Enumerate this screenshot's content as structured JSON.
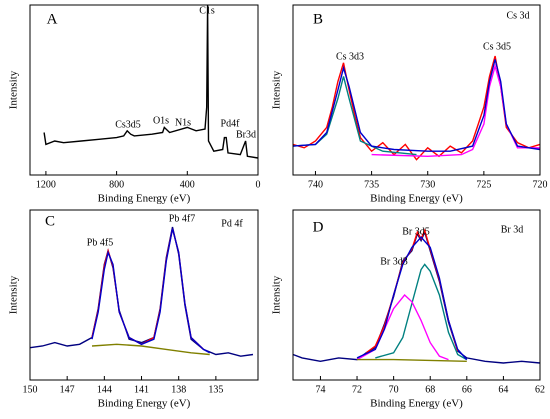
{
  "chart_data": [
    {
      "type": "line",
      "label": "A",
      "x_label": "Binding Energy (eV)",
      "y_label": "Intensity",
      "xlim": [
        1290,
        0
      ],
      "ylim": [
        0,
        100
      ],
      "xticks": [
        1200,
        800,
        400,
        0
      ],
      "annotations": [
        "C1s",
        "O1s",
        "N1s",
        "Cs3d5",
        "Pd4f",
        "Br3d"
      ],
      "series": [
        {
          "color": "#000000",
          "x": [
            1210,
            1200,
            1150,
            1100,
            1000,
            900,
            800,
            760,
            740,
            720,
            700,
            600,
            540,
            530,
            500,
            400,
            350,
            300,
            290,
            285,
            280,
            250,
            200,
            190,
            180,
            170,
            100,
            70,
            60,
            0
          ],
          "values": [
            25,
            18,
            20,
            19,
            20,
            21,
            22,
            23,
            26,
            24,
            23,
            24,
            25,
            28,
            25,
            28,
            26,
            27,
            40,
            100,
            20,
            14,
            15,
            22,
            22,
            13,
            12,
            20,
            11,
            10
          ]
        }
      ]
    },
    {
      "type": "line",
      "label": "B",
      "x_label": "Binding Energy (eV)",
      "y_label": "Intensity",
      "xlim": [
        742,
        720
      ],
      "ylim": [
        0,
        100
      ],
      "xticks": [
        740,
        735,
        730,
        725,
        720
      ],
      "annotations": [
        "Cs 3d",
        "Cs 3d3",
        "Cs 3d5"
      ],
      "series": [
        {
          "color": "#ff0000",
          "x": [
            742,
            741,
            740,
            739,
            738.5,
            738,
            737.5,
            737,
            736.5,
            736,
            735,
            734,
            733,
            732,
            731,
            730,
            729,
            728,
            727,
            726,
            725.5,
            725,
            724.5,
            724,
            723.5,
            723,
            722,
            721,
            720
          ],
          "values": [
            18,
            16,
            20,
            28,
            40,
            55,
            66,
            50,
            35,
            22,
            14,
            19,
            12,
            18,
            9,
            16,
            11,
            17,
            13,
            20,
            30,
            40,
            58,
            70,
            52,
            28,
            19,
            16,
            18
          ]
        },
        {
          "color": "#008080",
          "x": [
            742,
            740,
            739,
            738,
            737.5,
            737,
            736,
            734,
            731
          ],
          "values": [
            17,
            18,
            24,
            45,
            58,
            45,
            20,
            14,
            12
          ]
        },
        {
          "color": "#ff00ff",
          "x": [
            735,
            730,
            727,
            726,
            725,
            724.5,
            724,
            723.5,
            723,
            722,
            720
          ],
          "values": [
            12,
            11,
            12,
            15,
            30,
            52,
            64,
            52,
            30,
            16,
            16
          ]
        },
        {
          "color": "#0000cc",
          "x": [
            742,
            740,
            739,
            738,
            737.5,
            737,
            736,
            735,
            733,
            730,
            728,
            726,
            725,
            724.5,
            724,
            723.5,
            723,
            722,
            720
          ],
          "values": [
            17,
            18,
            25,
            50,
            63,
            52,
            25,
            17,
            15,
            14,
            14,
            17,
            35,
            55,
            68,
            55,
            30,
            17,
            15
          ]
        }
      ]
    },
    {
      "type": "line",
      "label": "C",
      "x_label": "Binding Energy (eV)",
      "y_label": "Intensity",
      "xlim": [
        150,
        131.6
      ],
      "ylim": [
        0,
        100
      ],
      "xticks": [
        150,
        147,
        144,
        141,
        138,
        135
      ],
      "annotations": [
        "Pd 4f",
        "Pb 4f5",
        "Pb 4f7"
      ],
      "series": [
        {
          "color": "#000080",
          "x": [
            150,
            149,
            148,
            147,
            146,
            145,
            144.5,
            144,
            143.7,
            143.3,
            142.8,
            142,
            141,
            140,
            139.5,
            139,
            138.5,
            138,
            137.5,
            137,
            136,
            135,
            134,
            133,
            132
          ],
          "values": [
            19,
            20,
            22,
            20,
            21,
            25,
            42,
            68,
            76,
            66,
            41,
            24,
            22,
            25,
            42,
            72,
            90,
            74,
            44,
            24,
            18,
            15,
            16,
            14,
            15
          ]
        },
        {
          "color": "#ff0000",
          "x": [
            145,
            144.5,
            144,
            143.7,
            143.3,
            142.8,
            142,
            141,
            140,
            139.5,
            139,
            138.5,
            138,
            137.5,
            137,
            136
          ],
          "values": [
            25,
            41,
            67,
            76,
            67,
            40,
            25,
            21,
            25,
            41,
            71,
            89,
            75,
            45,
            25,
            18
          ]
        },
        {
          "color": "#808000",
          "x": [
            145,
            143,
            141,
            139,
            137,
            135.5
          ],
          "values": [
            20,
            21,
            20,
            18,
            16,
            15
          ]
        },
        {
          "color": "#0000cc",
          "x": [
            145,
            144.5,
            144,
            143.7,
            143.3,
            142.8,
            142,
            141,
            140,
            139.5,
            139,
            138.5,
            138,
            137.5,
            137,
            136,
            135.5
          ],
          "values": [
            24,
            40,
            65,
            75,
            68,
            40,
            25,
            21,
            24,
            40,
            70,
            89,
            75,
            45,
            25,
            18,
            16
          ]
        }
      ]
    },
    {
      "type": "line",
      "label": "D",
      "x_label": "Binding Energy (eV)",
      "y_label": "Intensity",
      "xlim": [
        75.5,
        62
      ],
      "ylim": [
        0,
        100
      ],
      "xticks": [
        74,
        72,
        70,
        68,
        66,
        64,
        62
      ],
      "annotations": [
        "Br 3d",
        "Br 3d5",
        "Br 3d3"
      ],
      "series": [
        {
          "color": "#000080",
          "x": [
            75.5,
            75,
            74,
            73,
            72,
            71.5,
            71,
            70.5,
            70,
            69.5,
            69,
            68.7,
            68.5,
            68.3,
            68,
            67.5,
            67,
            66.5,
            66,
            65,
            64,
            63,
            62
          ],
          "values": [
            15,
            13,
            11,
            13,
            12,
            16,
            19,
            33,
            49,
            70,
            76,
            86,
            82,
            87,
            76,
            58,
            34,
            17,
            13,
            11,
            10,
            11,
            10
          ]
        },
        {
          "color": "#ff0000",
          "x": [
            71.5,
            71,
            70.5,
            70,
            69.5,
            69,
            68.7,
            68.5,
            68.3,
            68,
            67.5,
            67,
            66.5
          ],
          "values": [
            16,
            20,
            32,
            50,
            69,
            77,
            87,
            83,
            88,
            77,
            59,
            35,
            17
          ]
        },
        {
          "color": "#008080",
          "x": [
            71,
            70,
            69.5,
            69,
            68.5,
            68.3,
            68,
            67.5,
            67,
            66.5,
            66
          ],
          "values": [
            13,
            16,
            25,
            45,
            65,
            68,
            64,
            50,
            28,
            15,
            12
          ]
        },
        {
          "color": "#ff00ff",
          "x": [
            72,
            71,
            70.5,
            70,
            69.4,
            69,
            68.5,
            68,
            67.5,
            67
          ],
          "values": [
            12,
            18,
            30,
            42,
            50,
            46,
            35,
            22,
            14,
            12
          ]
        },
        {
          "color": "#808000",
          "x": [
            72,
            70,
            68,
            66
          ],
          "values": [
            12,
            12,
            11.5,
            11
          ]
        },
        {
          "color": "#0000cc",
          "x": [
            72,
            71,
            70.5,
            70,
            69.5,
            69,
            68.5,
            68,
            67.5,
            67,
            66.5,
            66
          ],
          "values": [
            13,
            18,
            30,
            50,
            68,
            78,
            84,
            78,
            60,
            35,
            18,
            12
          ]
        }
      ]
    }
  ]
}
